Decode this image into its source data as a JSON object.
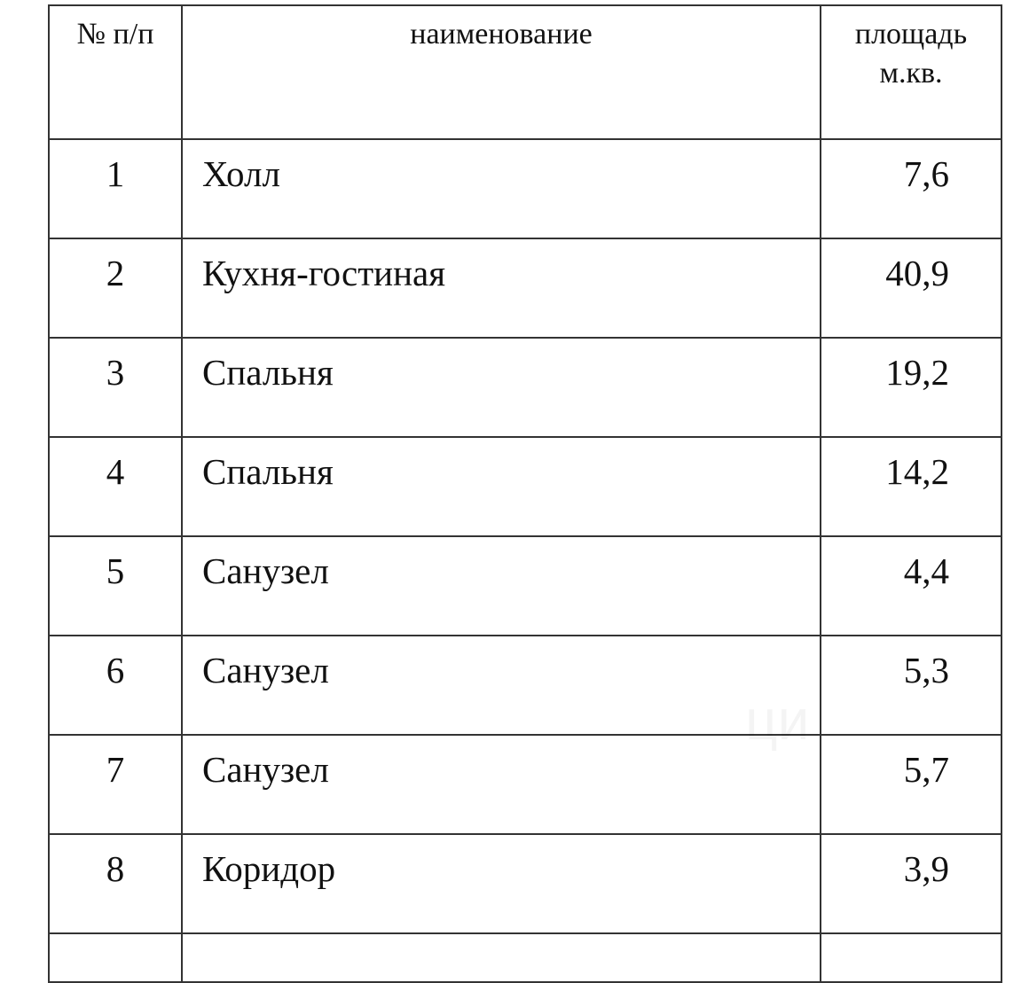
{
  "table": {
    "headers": {
      "number": "№ п/п",
      "name": "наименование",
      "area_line1": "площадь",
      "area_line2": "м.кв."
    },
    "rows": [
      {
        "n": "1",
        "name": "Холл",
        "area": "7,6"
      },
      {
        "n": "2",
        "name": "Кухня-гостиная",
        "area": "40,9"
      },
      {
        "n": "3",
        "name": "Спальня",
        "area": "19,2"
      },
      {
        "n": "4",
        "name": "Спальня",
        "area": "14,2"
      },
      {
        "n": "5",
        "name": "Санузел",
        "area": "4,4"
      },
      {
        "n": "6",
        "name": "Санузел",
        "area": "5,3"
      },
      {
        "n": "7",
        "name": "Санузел",
        "area": "5,7"
      },
      {
        "n": "8",
        "name": "Коридор",
        "area": "3,9"
      }
    ]
  },
  "watermark": "циан"
}
